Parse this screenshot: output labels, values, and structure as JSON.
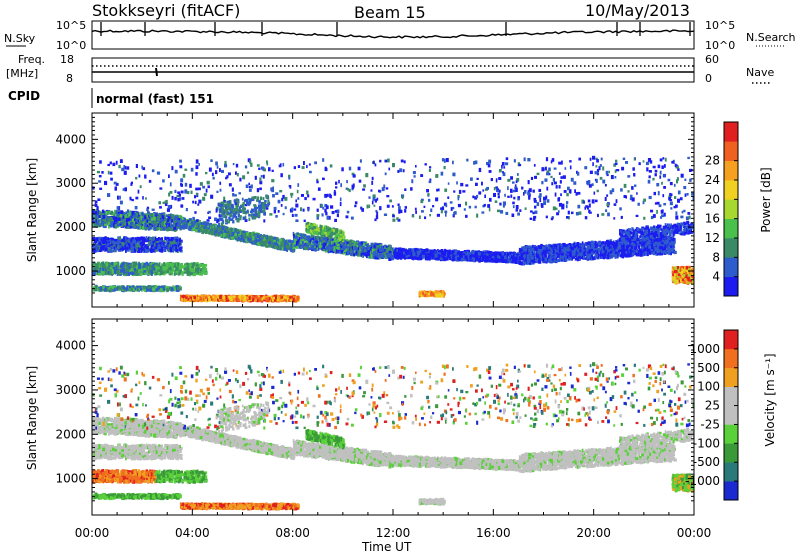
{
  "header": {
    "station": "Stokkseyri (fitACF)",
    "beam": "Beam 15",
    "date": "10/May/2013"
  },
  "panels": {
    "nsky": {
      "label": "N.Sky",
      "top_tick": "10^5",
      "bottom_tick": "10^0",
      "right_label": "N.Search",
      "right_top_tick": "10^5",
      "right_bottom_tick": "10^0"
    },
    "freq": {
      "label_line1": "Freq.",
      "label_line2": "[MHz]",
      "top_tick": "18",
      "bottom_tick": "8",
      "right_label": "Nave",
      "right_top_tick": "60",
      "right_bottom_tick": "0"
    },
    "cpid": {
      "label": "CPID",
      "value": "normal (fast) 151"
    }
  },
  "chart_data": [
    {
      "type": "heatmap",
      "title": "",
      "ylabel": "Slant Range [km]",
      "xlabel": "",
      "ylim": [
        180,
        4600
      ],
      "yticks": [
        "1000",
        "2000",
        "3000",
        "4000"
      ],
      "xlim": [
        0,
        24
      ],
      "colorbar": {
        "label": "Power [dB]",
        "ticks": [
          "4",
          "8",
          "12",
          "16",
          "20",
          "24",
          "28"
        ],
        "colors": [
          "#1c1cf0",
          "#2f5ccc",
          "#3a8a68",
          "#4cc04c",
          "#a8d830",
          "#f0d020",
          "#f5a020",
          "#f06020",
          "#e02020"
        ]
      }
    },
    {
      "type": "heatmap",
      "title": "",
      "ylabel": "Slant Range [km]",
      "xlabel": "Time UT",
      "ylim": [
        180,
        4600
      ],
      "yticks": [
        "1000",
        "2000",
        "3000",
        "4000"
      ],
      "xlim": [
        0,
        24
      ],
      "xticks": [
        "00:00",
        "04:00",
        "08:00",
        "12:00",
        "16:00",
        "20:00",
        "00:00"
      ],
      "colorbar": {
        "label": "Velocity [m s⁻¹]",
        "ticks": [
          "1000",
          "500",
          "100",
          "25",
          "-25",
          "-100",
          "-500",
          "-1000"
        ],
        "colors": [
          "#1a2ad0",
          "#2a7a7a",
          "#3a9a3a",
          "#5ad03a",
          "#c0c0c0",
          "#c0c0c0",
          "#f0a020",
          "#f07020",
          "#e02020"
        ]
      }
    }
  ]
}
